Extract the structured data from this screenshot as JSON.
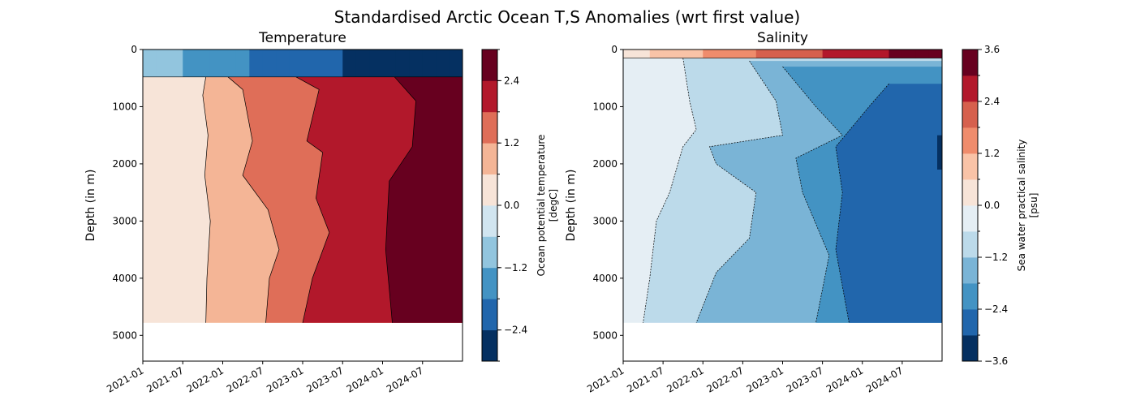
{
  "figure": {
    "suptitle": "Standardised Arctic Ocean T,S Anomalies (wrt first value)"
  },
  "chart_data": [
    {
      "type": "heatmap",
      "subtype": "filled-contour",
      "title": "Temperature",
      "ylabel": "Depth (in m)",
      "xlabel": "",
      "x_ticks": [
        "2021-01",
        "2021-07",
        "2022-01",
        "2022-07",
        "2023-01",
        "2023-07",
        "2024-01",
        "2024-07"
      ],
      "x_range": [
        "2021-01",
        "2025-01"
      ],
      "y_ticks": [
        0,
        1000,
        2000,
        3000,
        4000,
        5000
      ],
      "ylim": [
        5450,
        0
      ],
      "y_inverted": true,
      "data_max_depth": 4780,
      "colorbar": {
        "label": "Ocean potential temperature\n[degC]",
        "levels": [
          -3.0,
          -2.4,
          -1.8,
          -1.2,
          -0.6,
          0.0,
          0.6,
          1.2,
          1.8,
          2.4,
          3.0
        ],
        "tick_labels": [
          "−2.4",
          "−1.2",
          "0.0",
          "1.2",
          "2.4"
        ],
        "tick_values": [
          -2.4,
          -1.2,
          0.0,
          1.2,
          2.4
        ],
        "colors": [
          "#053061",
          "#2166ac",
          "#4393c3",
          "#92c5de",
          "#d1e5f0",
          "#f7e4d8",
          "#f4b596",
          "#df6e58",
          "#b2182b",
          "#67001f"
        ]
      },
      "contour_boundaries": [
        {
          "level": 0.6,
          "points": [
            [
              "2021-10-15",
              480
            ],
            [
              "2021-10-01",
              800
            ],
            [
              "2021-10-25",
              1500
            ],
            [
              "2021-10-10",
              2200
            ],
            [
              "2021-11-05",
              3000
            ],
            [
              "2021-10-20",
              4000
            ],
            [
              "2021-10-15",
              4780
            ]
          ]
        },
        {
          "level": 1.2,
          "points": [
            [
              "2022-01-25",
              480
            ],
            [
              "2022-04-01",
              700
            ],
            [
              "2022-05-15",
              1600
            ],
            [
              "2022-04-01",
              2200
            ],
            [
              "2022-07-25",
              2800
            ],
            [
              "2022-09-15",
              3500
            ],
            [
              "2022-08-01",
              4000
            ],
            [
              "2022-07-15",
              4780
            ]
          ]
        },
        {
          "level": 1.8,
          "points": [
            [
              "2022-12-01",
              480
            ],
            [
              "2023-03-15",
              700
            ],
            [
              "2023-01-20",
              1600
            ],
            [
              "2023-04-01",
              1800
            ],
            [
              "2023-03-01",
              2600
            ],
            [
              "2023-05-01",
              3200
            ],
            [
              "2023-02-15",
              4000
            ],
            [
              "2023-01-01",
              4780
            ]
          ]
        },
        {
          "level": 2.4,
          "points": [
            [
              "2024-02-25",
              480
            ],
            [
              "2024-06-01",
              900
            ],
            [
              "2024-05-15",
              1700
            ],
            [
              "2024-02-01",
              2300
            ],
            [
              "2024-01-15",
              3500
            ],
            [
              "2024-02-15",
              4780
            ]
          ]
        }
      ],
      "surface_layer": {
        "depth_range": [
          0,
          480
        ],
        "trend": "negative anomaly down to about −3.0 by 2025"
      }
    },
    {
      "type": "heatmap",
      "subtype": "filled-contour",
      "title": "Salinity",
      "ylabel": "Depth (in m)",
      "xlabel": "",
      "x_ticks": [
        "2021-01",
        "2021-07",
        "2022-01",
        "2022-07",
        "2023-01",
        "2023-07",
        "2024-01",
        "2024-07"
      ],
      "x_range": [
        "2021-01",
        "2025-01"
      ],
      "y_ticks": [
        0,
        1000,
        2000,
        3000,
        4000,
        5000
      ],
      "ylim": [
        5450,
        0
      ],
      "y_inverted": true,
      "data_max_depth": 4780,
      "colorbar": {
        "label": "Sea water practical salinity\n[psu]",
        "levels": [
          -3.6,
          -3.0,
          -2.4,
          -1.8,
          -1.2,
          -0.6,
          0.0,
          0.6,
          1.2,
          1.8,
          2.4,
          3.0,
          3.6
        ],
        "tick_labels": [
          "−3.6",
          "−2.4",
          "−1.2",
          "0.0",
          "1.2",
          "2.4",
          "3.6"
        ],
        "tick_values": [
          -3.6,
          -2.4,
          -1.2,
          0.0,
          1.2,
          2.4,
          3.6
        ],
        "colors": [
          "#053061",
          "#2166ac",
          "#4393c3",
          "#7ab4d6",
          "#bcdaea",
          "#e5eef4",
          "#f7e4d8",
          "#f9c3a7",
          "#ef8c6c",
          "#d6604d",
          "#b2182b",
          "#67001f"
        ]
      },
      "contour_boundaries": [
        {
          "level": -0.6,
          "points": [
            [
              "2021-10-01",
              150
            ],
            [
              "2021-11-01",
              900
            ],
            [
              "2021-12-01",
              1400
            ],
            [
              "2021-10-01",
              1700
            ],
            [
              "2021-08-01",
              2500
            ],
            [
              "2021-06-01",
              3000
            ],
            [
              "2021-05-01",
              4000
            ],
            [
              "2021-04-01",
              4780
            ]
          ]
        },
        {
          "level": -1.2,
          "points": [
            [
              "2022-08-01",
              200
            ],
            [
              "2022-12-01",
              900
            ],
            [
              "2023-01-01",
              1500
            ],
            [
              "2022-02-01",
              1700
            ],
            [
              "2022-03-01",
              2000
            ],
            [
              "2022-09-01",
              2500
            ],
            [
              "2022-08-01",
              3300
            ],
            [
              "2022-03-01",
              3900
            ],
            [
              "2021-12-01",
              4780
            ]
          ]
        },
        {
          "level": -1.8,
          "points": [
            [
              "2023-01-01",
              300
            ],
            [
              "2023-06-01",
              1000
            ],
            [
              "2023-10-01",
              1500
            ],
            [
              "2023-03-01",
              1900
            ],
            [
              "2023-04-01",
              2500
            ],
            [
              "2023-08-01",
              3600
            ],
            [
              "2023-06-01",
              4780
            ]
          ]
        },
        {
          "level": -2.4,
          "points": [
            [
              "2024-05-01",
              600
            ],
            [
              "2024-02-01",
              1000
            ],
            [
              "2023-09-01",
              1700
            ],
            [
              "2023-10-01",
              2500
            ],
            [
              "2023-09-01",
              3500
            ],
            [
              "2023-11-01",
              4780
            ]
          ]
        }
      ],
      "surface_layer": {
        "depth_range": [
          0,
          150
        ],
        "trend": "strong positive anomaly near surface, up to about 3.6 by 2025"
      }
    }
  ]
}
